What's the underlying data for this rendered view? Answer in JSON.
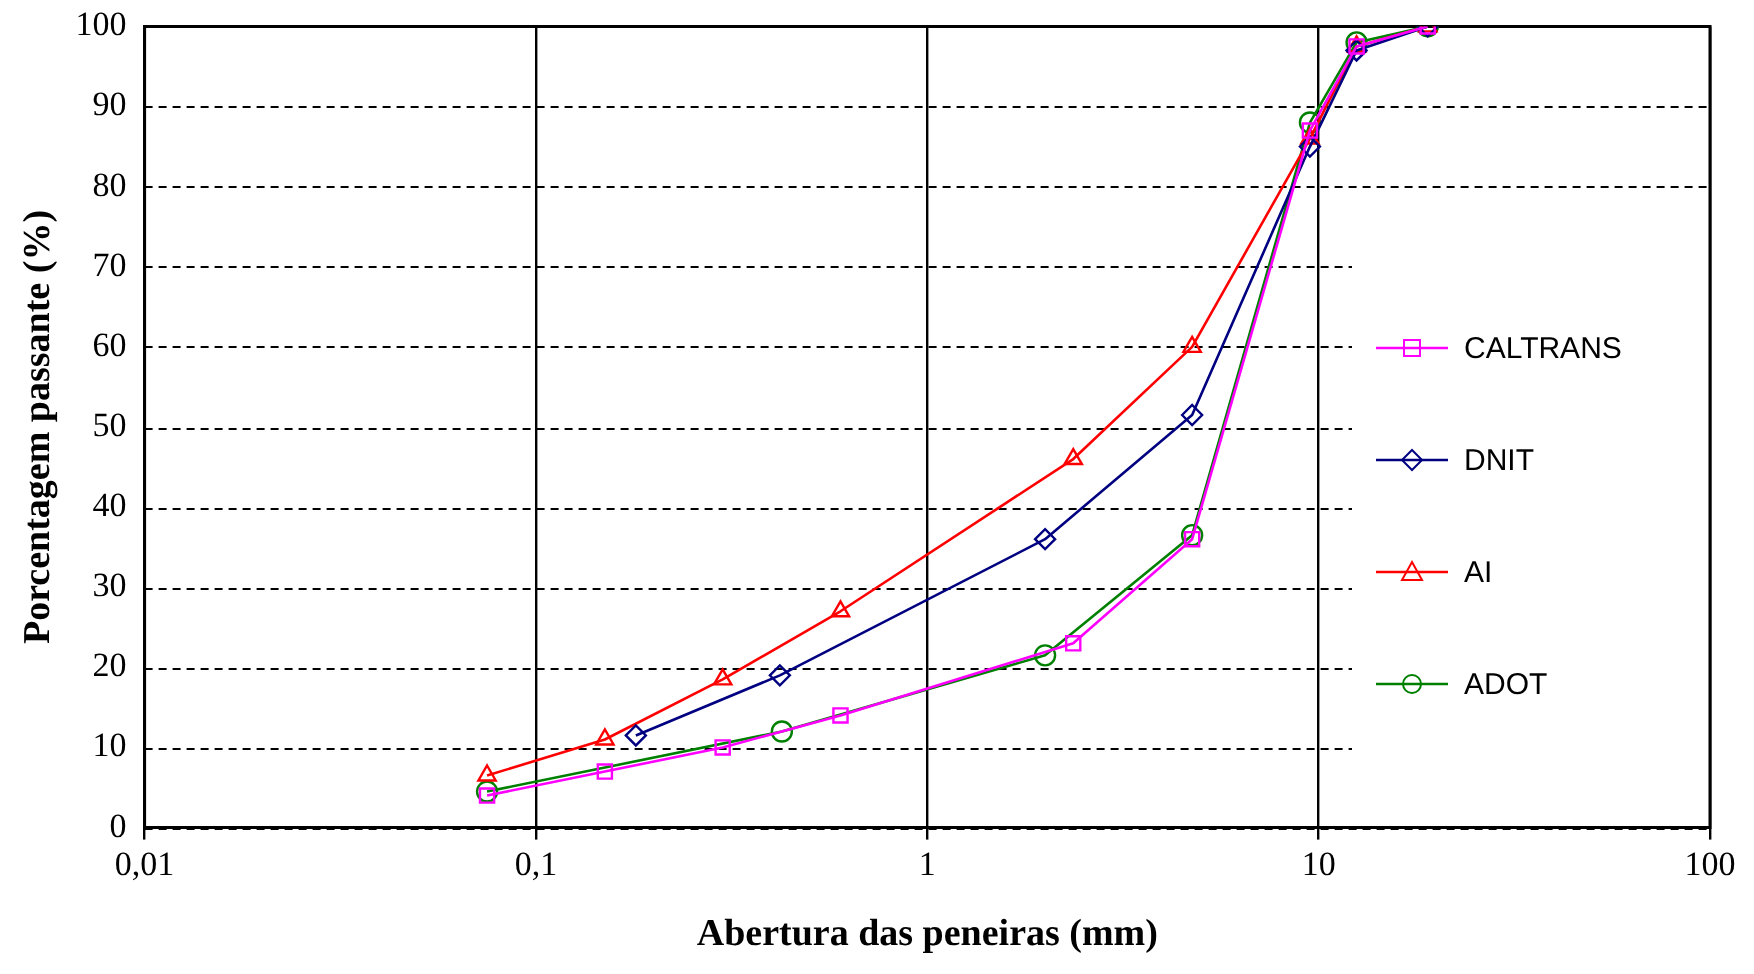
{
  "chart_data": {
    "type": "line",
    "xlabel": "Abertura das peneiras (mm)",
    "ylabel": "Porcentagem passante (%)",
    "log": "x",
    "xlim": [
      0.01,
      100
    ],
    "xticks": [
      {
        "value": 0.01,
        "label": "0,01"
      },
      {
        "value": 0.1,
        "label": "0,1"
      },
      1,
      10,
      100
    ],
    "ylim": [
      0,
      100
    ],
    "yticks": [
      0,
      10,
      20,
      30,
      40,
      50,
      60,
      70,
      80,
      90,
      100
    ],
    "grid": true,
    "legend": "right",
    "line_style": "solid",
    "series": [
      {
        "name": "CALTRANS",
        "color": "#ff00ff",
        "marker": "square",
        "x": [
          0.075,
          0.15,
          0.3,
          0.6,
          2.36,
          4.75,
          9.5,
          12.5,
          19
        ],
        "values": [
          4,
          7,
          10,
          14,
          23,
          36,
          87,
          97.5,
          100
        ]
      },
      {
        "name": "DNIT",
        "color": "#000080",
        "marker": "diamond",
        "x": [
          0.18,
          0.42,
          2,
          4.75,
          9.5,
          12.5,
          19
        ],
        "values": [
          11.5,
          19,
          36,
          51.5,
          85,
          97,
          100
        ]
      },
      {
        "name": "AI",
        "color": "#ff0000",
        "marker": "triangle",
        "x": [
          0.075,
          0.15,
          0.3,
          0.6,
          2.36,
          4.75,
          9.5,
          12.5,
          19
        ],
        "values": [
          6.5,
          11,
          18.5,
          27,
          46,
          60,
          86,
          97.5,
          100
        ]
      },
      {
        "name": "ADOT",
        "color": "#008000",
        "marker": "circle",
        "x": [
          0.075,
          0.425,
          2,
          4.75,
          9.5,
          12.5,
          19
        ],
        "values": [
          4.5,
          12,
          21.5,
          36.5,
          88,
          98,
          100
        ]
      }
    ]
  }
}
